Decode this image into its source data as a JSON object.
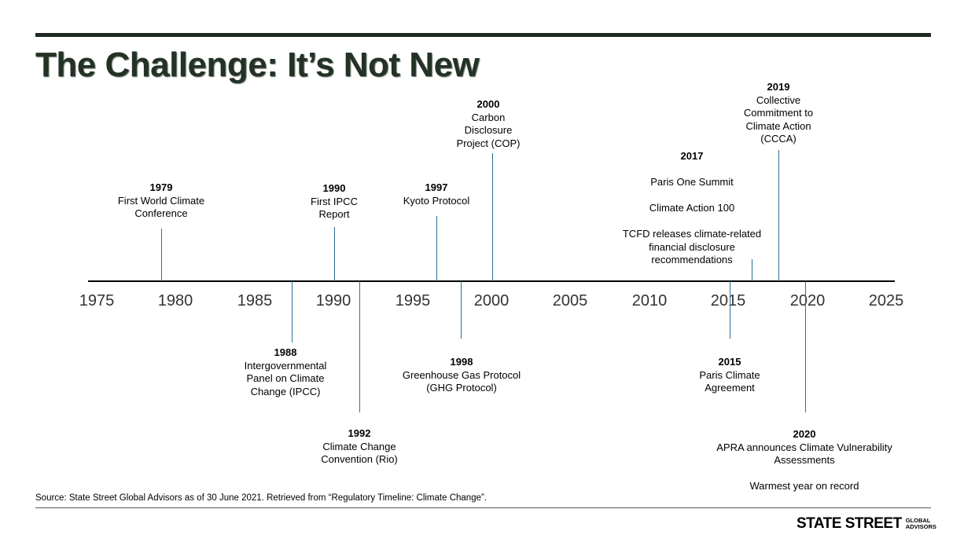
{
  "title": "The Challenge: It’s Not New",
  "axis_ticks": [
    "1975",
    "1980",
    "1985",
    "1990",
    "1995",
    "2000",
    "2005",
    "2010",
    "2015",
    "2020",
    "2025"
  ],
  "events": [
    {
      "year": "1979",
      "text": "First World Climate\nConference"
    },
    {
      "year": "1988",
      "text": "Intergovernmental\nPanel on Climate\nChange (IPCC)"
    },
    {
      "year": "1990",
      "text": "First IPCC\nReport"
    },
    {
      "year": "1992",
      "text": "Climate Change\nConvention (Rio)"
    },
    {
      "year": "1997",
      "text": "Kyoto Protocol"
    },
    {
      "year": "1998",
      "text": "Greenhouse Gas Protocol\n(GHG Protocol)"
    },
    {
      "year": "2000",
      "text": "Carbon\nDisclosure\nProject (COP)"
    },
    {
      "year": "2015",
      "text": "Paris Climate\nAgreement"
    },
    {
      "year": "2017",
      "text_1": "Paris One Summit",
      "text_2": "Climate Action 100",
      "text_3": "TCFD releases climate-related\nfinancial disclosure\nrecommendations"
    },
    {
      "year": "2019",
      "text": "Collective\nCommitment to\nClimate Action\n(CCCA)"
    },
    {
      "year": "2020",
      "text_1": "APRA announces Climate Vulnerability\nAssessments",
      "text_2": "Warmest year on record"
    }
  ],
  "source": "Source: State Street Global Advisors as of 30 June 2021. Retrieved from “Regulatory Timeline: Climate Change”.",
  "logo": {
    "main": "STATE STREET",
    "sub_1": "GLOBAL",
    "sub_2": "ADVISORS"
  },
  "colors": {
    "title": "#243226",
    "connector": "#2e6f95",
    "axis": "#000000"
  }
}
